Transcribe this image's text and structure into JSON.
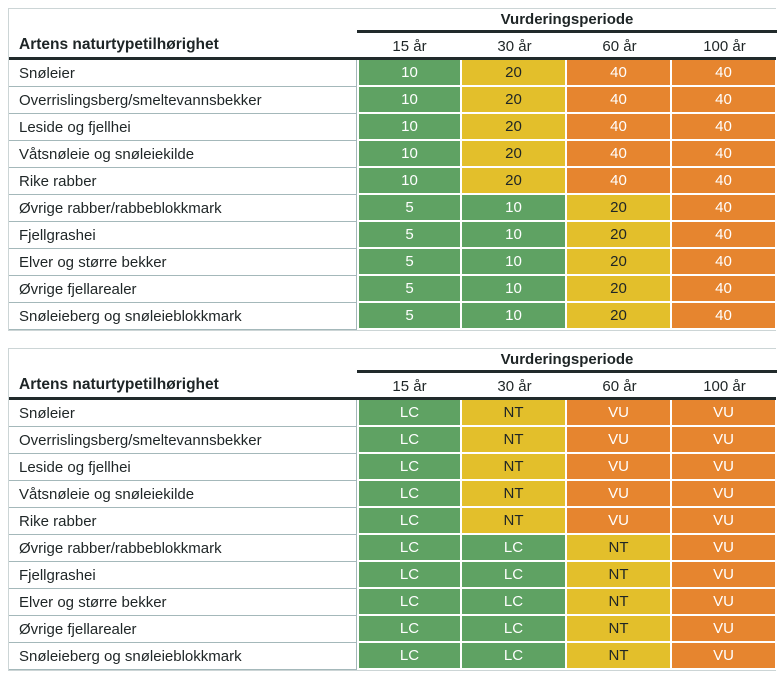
{
  "colors": {
    "green": "#5fa263",
    "yellow": "#e3bf2b",
    "orange": "#e6852f",
    "header_line": "#212a2b",
    "row_separator": "#a4b8ba",
    "outer_border": "#ccd5d6",
    "text_dark": "#1e2526",
    "white": "#ffffff"
  },
  "value_colors": {
    "5": "green",
    "10": "green",
    "20": "yellow",
    "40": "orange",
    "LC": "green",
    "NT": "yellow",
    "VU": "orange"
  },
  "cell_text": {
    "green": "#ffffff",
    "yellow": "#1e2526",
    "orange": "#ffffff"
  },
  "tables": [
    {
      "period_header": "Vurderingsperiode",
      "row_header": "Artens naturtypetilhørighet",
      "columns": [
        "15 år",
        "30 år",
        "60 år",
        "100 år"
      ],
      "rows": [
        {
          "label": "Snøleier",
          "values": [
            "10",
            "20",
            "40",
            "40"
          ]
        },
        {
          "label": "Overrislingsberg/smeltevannsbekker",
          "values": [
            "10",
            "20",
            "40",
            "40"
          ]
        },
        {
          "label": "Leside og fjellhei",
          "values": [
            "10",
            "20",
            "40",
            "40"
          ]
        },
        {
          "label": "Våtsnøleie og snøleiekilde",
          "values": [
            "10",
            "20",
            "40",
            "40"
          ]
        },
        {
          "label": "Rike rabber",
          "values": [
            "10",
            "20",
            "40",
            "40"
          ]
        },
        {
          "label": "Øvrige rabber/rabbeblokkmark",
          "values": [
            "5",
            "10",
            "20",
            "40"
          ]
        },
        {
          "label": "Fjellgrashei",
          "values": [
            "5",
            "10",
            "20",
            "40"
          ]
        },
        {
          "label": "Elver og større bekker",
          "values": [
            "5",
            "10",
            "20",
            "40"
          ]
        },
        {
          "label": "Øvrige fjellarealer",
          "values": [
            "5",
            "10",
            "20",
            "40"
          ]
        },
        {
          "label": "Snøleieberg og snøleieblokkmark",
          "values": [
            "5",
            "10",
            "20",
            "40"
          ]
        }
      ]
    },
    {
      "period_header": "Vurderingsperiode",
      "row_header": "Artens naturtypetilhørighet",
      "columns": [
        "15 år",
        "30 år",
        "60 år",
        "100 år"
      ],
      "rows": [
        {
          "label": "Snøleier",
          "values": [
            "LC",
            "NT",
            "VU",
            "VU"
          ]
        },
        {
          "label": "Overrislingsberg/smeltevannsbekker",
          "values": [
            "LC",
            "NT",
            "VU",
            "VU"
          ]
        },
        {
          "label": "Leside og fjellhei",
          "values": [
            "LC",
            "NT",
            "VU",
            "VU"
          ]
        },
        {
          "label": "Våtsnøleie og snøleiekilde",
          "values": [
            "LC",
            "NT",
            "VU",
            "VU"
          ]
        },
        {
          "label": "Rike rabber",
          "values": [
            "LC",
            "NT",
            "VU",
            "VU"
          ]
        },
        {
          "label": "Øvrige rabber/rabbeblokkmark",
          "values": [
            "LC",
            "LC",
            "NT",
            "VU"
          ]
        },
        {
          "label": "Fjellgrashei",
          "values": [
            "LC",
            "LC",
            "NT",
            "VU"
          ]
        },
        {
          "label": "Elver og større bekker",
          "values": [
            "LC",
            "LC",
            "NT",
            "VU"
          ]
        },
        {
          "label": "Øvrige fjellarealer",
          "values": [
            "LC",
            "LC",
            "NT",
            "VU"
          ]
        },
        {
          "label": "Snøleieberg og snøleieblokkmark",
          "values": [
            "LC",
            "LC",
            "NT",
            "VU"
          ]
        }
      ]
    }
  ]
}
